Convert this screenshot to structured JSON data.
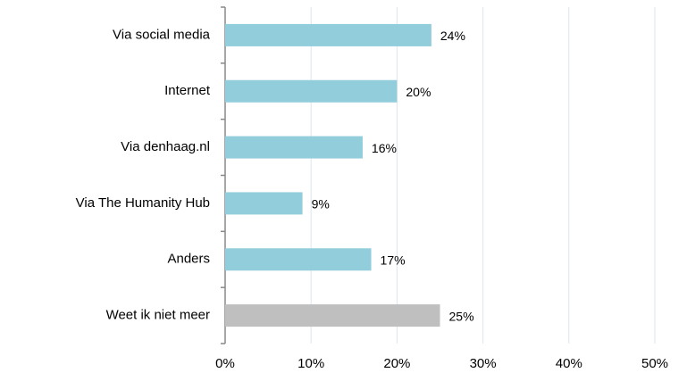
{
  "chart_data": {
    "type": "barh",
    "categories": [
      "Via social media",
      "Internet",
      "Via denhaag.nl",
      "Via The Humanity Hub",
      "Anders",
      "Weet ik niet meer"
    ],
    "values": [
      24,
      20,
      16,
      9,
      17,
      25
    ],
    "value_labels": [
      "24%",
      "20%",
      "16%",
      "9%",
      "17%",
      "25%"
    ],
    "colors": [
      "#92cddc",
      "#92cddc",
      "#92cddc",
      "#92cddc",
      "#92cddc",
      "#bfbfbf"
    ],
    "xlim": [
      0,
      50
    ],
    "xticks": [
      {
        "value": 0,
        "label": "0%"
      },
      {
        "value": 10,
        "label": "10%"
      },
      {
        "value": 20,
        "label": "20%"
      },
      {
        "value": 30,
        "label": "30%"
      },
      {
        "value": 40,
        "label": "40%"
      },
      {
        "value": 50,
        "label": "50%"
      }
    ],
    "grid": true
  }
}
